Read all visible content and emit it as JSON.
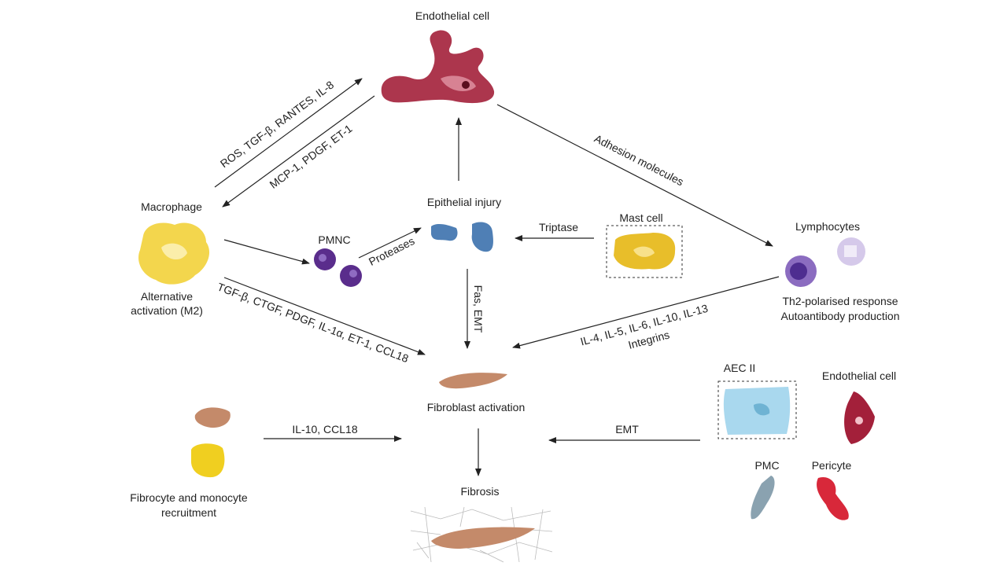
{
  "colors": {
    "endothelial": "#a3203a",
    "macrophage": "#f2d13a",
    "pmnc": "#5a2d8c",
    "epithelial": "#4f7fb5",
    "mast": "#e8be2a",
    "lymphocyte": "#8b6cc0",
    "fibroblast": "#c48a6a",
    "fibrocyte_yellow": "#f0cf20",
    "aec2": "#a9d8ee",
    "pmc": "#8aa2b0",
    "pericyte": "#d8283a",
    "arrow": "#222222"
  },
  "nodes": {
    "endothelial_top": "Endothelial cell",
    "macrophage": "Macrophage",
    "macrophage_sub1": "Alternative",
    "macrophage_sub2": "activation (M2)",
    "pmnc": "PMNC",
    "epithelial": "Epithelial injury",
    "mast": "Mast cell",
    "lymphocytes": "Lymphocytes",
    "lymph_sub1": "Th2-polarised response",
    "lymph_sub2": "Autoantibody production",
    "fibroblast": "Fibroblast activation",
    "fibrocyte1": "Fibrocyte and monocyte",
    "fibrocyte2": "recruitment",
    "fibrosis": "Fibrosis",
    "aec2": "AEC II",
    "endothelial_right": "Endothelial cell",
    "pmc": "PMC",
    "pericyte": "Pericyte"
  },
  "edges": {
    "mac_to_endo": "ROS, TGF-β, RANTES, IL-8",
    "endo_to_mac": "MCP-1, PDGF, ET-1",
    "adhesion": "Adhesion molecules",
    "proteases": "Proteases",
    "triptase": "Triptase",
    "fas_emt": "Fas, EMT",
    "mac_to_fib": "TGF-β, CTGF, PDGF, IL-1α, ET-1, CCL18",
    "lymph_to_fib1": "IL-4, IL-5, IL-6, IL-10, IL-13",
    "lymph_to_fib2": "Integrins",
    "fibrocyte_to_fib": "IL-10, CCL18",
    "emt": "EMT"
  }
}
